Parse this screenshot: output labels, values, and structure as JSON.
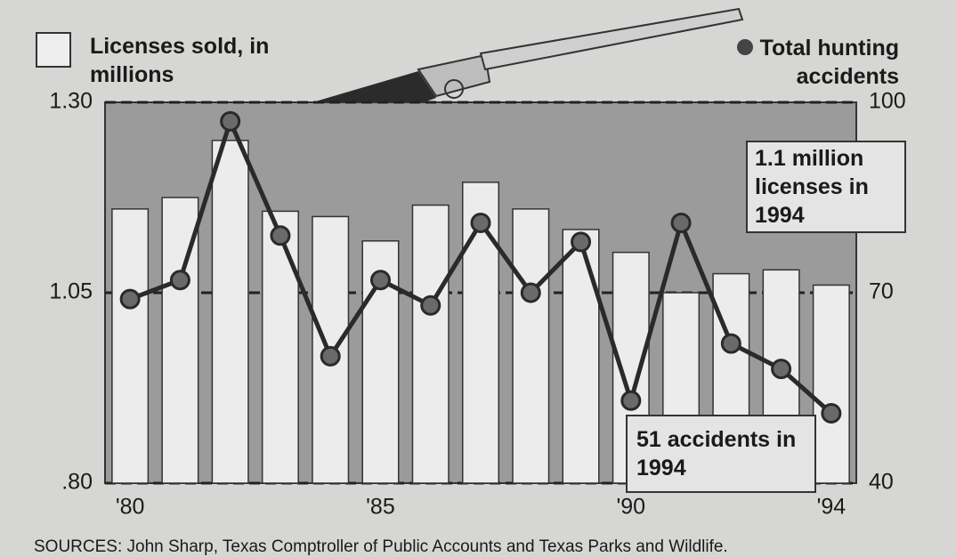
{
  "chart_data": {
    "type": "bar",
    "categories": [
      "'80",
      null,
      null,
      null,
      null,
      "'85",
      null,
      null,
      null,
      null,
      "'90",
      null,
      null,
      null,
      "'94"
    ],
    "series": [
      {
        "name": "Licenses sold, in millions",
        "type": "bar",
        "color": "#ececec",
        "values": [
          1.16,
          1.175,
          1.25,
          1.157,
          1.15,
          1.118,
          1.165,
          1.195,
          1.16,
          1.133,
          1.103,
          1.05,
          1.075,
          1.08,
          1.06
        ]
      },
      {
        "name": "Total hunting accidents",
        "type": "line",
        "axis": "y2",
        "color": "#2a2a2a",
        "values": [
          69,
          72,
          97,
          79,
          60,
          72,
          68,
          81,
          70,
          78,
          53,
          81,
          62,
          58,
          51
        ]
      }
    ],
    "ylim": [
      0.8,
      1.3
    ],
    "yticks": [
      {
        "value": 0.8,
        "label": ".80"
      },
      {
        "value": 1.05,
        "label": "1.05"
      },
      {
        "value": 1.3,
        "label": "1.30"
      }
    ],
    "y2lim": [
      40,
      100
    ],
    "y2ticks": [
      40,
      70,
      100
    ],
    "grid": true,
    "annotations": [
      "1.1 million licenses in 1994",
      "51 accidents in 1994"
    ],
    "source": "SOURCES: John Sharp, Texas Comptroller of Public Accounts and Texas Parks and Wildlife."
  }
}
